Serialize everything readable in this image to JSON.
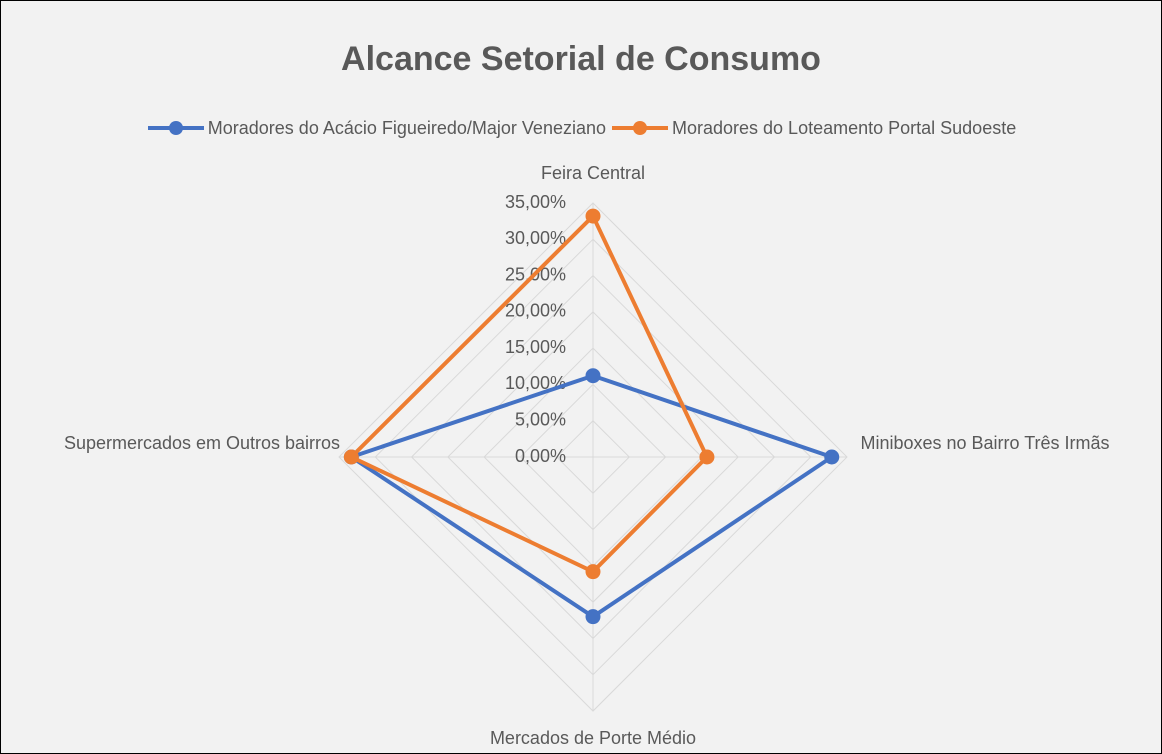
{
  "chart_data": {
    "type": "radar",
    "title": "Alcance Setorial de Consumo",
    "categories": [
      "Feira Central",
      "Miniboxes no Bairro Três Irmãs",
      "Mercados de Porte Médio",
      "Supermercados em Outros bairros"
    ],
    "series": [
      {
        "name": "Moradores do Acácio Figueiredo/Major Veneziano",
        "color": "#4472c4",
        "values": [
          11.2,
          32.9,
          22.0,
          33.3
        ]
      },
      {
        "name": "Moradores do Loteamento Portal Sudoeste",
        "color": "#ed7d31",
        "values": [
          33.2,
          15.7,
          15.8,
          33.3
        ]
      }
    ],
    "ylim": [
      0,
      35
    ],
    "yticks": [
      {
        "value": 0,
        "label": "0,00%"
      },
      {
        "value": 5,
        "label": "5,00%"
      },
      {
        "value": 10,
        "label": "10,00%"
      },
      {
        "value": 15,
        "label": "15,00%"
      },
      {
        "value": 20,
        "label": "20,00%"
      },
      {
        "value": 25,
        "label": "25,00%"
      },
      {
        "value": 30,
        "label": "30,00%"
      },
      {
        "value": 35,
        "label": "35,00%"
      }
    ],
    "grid": true,
    "legend": "top"
  }
}
